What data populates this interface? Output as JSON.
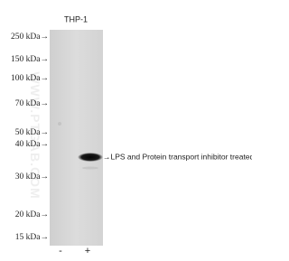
{
  "lane_header": "THP-1",
  "markers": [
    "250 kDa→",
    "150 kDa→",
    "100 kDa→",
    "70 kDa→",
    "50 kDa→",
    "40 kDa→",
    "30 kDa→",
    "20 kDa→",
    "15 kDa→"
  ],
  "band_label": "→LPS and Protein transport inhibitor treated",
  "lanes": [
    "-",
    "+"
  ],
  "watermark": "WWW.PTGAB.COM"
}
